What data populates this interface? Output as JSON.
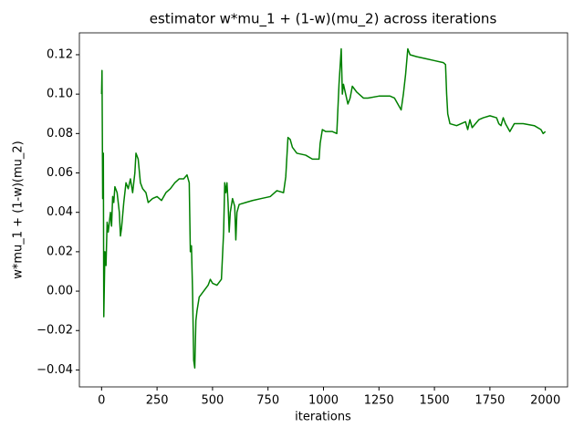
{
  "chart_data": {
    "type": "line",
    "title": "estimator w*mu_1 + (1-w)(mu_2) across iterations",
    "x_label": "iterations",
    "y_label": "w*mu_1 + (1-w)(mu_2)",
    "xlim": [
      -100,
      2100
    ],
    "ylim": [
      -0.0486,
      0.1311
    ],
    "xticks": [
      0,
      250,
      500,
      750,
      1000,
      1250,
      1500,
      1750,
      2000
    ],
    "yticks": [
      {
        "value": -0.04,
        "label": "−0.04"
      },
      {
        "value": -0.02,
        "label": "−0.02"
      },
      {
        "value": 0,
        "label": "0.00"
      },
      0.02,
      0.04,
      0.06,
      0.08,
      {
        "value": 0.1,
        "label": "0.10"
      },
      0.12
    ],
    "grid": false,
    "series": [
      {
        "color": "#008000",
        "x": [
          0,
          2,
          5,
          8,
          10,
          15,
          20,
          25,
          30,
          40,
          45,
          50,
          55,
          60,
          70,
          80,
          85,
          90,
          100,
          110,
          120,
          130,
          140,
          150,
          155,
          165,
          175,
          185,
          200,
          210,
          230,
          250,
          270,
          290,
          310,
          330,
          350,
          370,
          385,
          395,
          400,
          405,
          410,
          415,
          420,
          425,
          430,
          440,
          460,
          480,
          490,
          500,
          520,
          540,
          550,
          555,
          560,
          565,
          570,
          575,
          580,
          590,
          600,
          605,
          610,
          620,
          650,
          680,
          720,
          760,
          790,
          820,
          830,
          840,
          850,
          860,
          880,
          920,
          950,
          980,
          985,
          995,
          1010,
          1040,
          1060,
          1070,
          1080,
          1085,
          1090,
          1100,
          1110,
          1120,
          1130,
          1150,
          1180,
          1200,
          1250,
          1300,
          1320,
          1340,
          1350,
          1360,
          1370,
          1380,
          1390,
          1420,
          1460,
          1500,
          1540,
          1550,
          1555,
          1560,
          1570,
          1600,
          1640,
          1650,
          1660,
          1670,
          1700,
          1720,
          1750,
          1780,
          1790,
          1800,
          1810,
          1820,
          1840,
          1860,
          1900,
          1950,
          1980,
          1990,
          2000
        ],
        "values": [
          0.1,
          0.112,
          0.047,
          0.07,
          -0.013,
          0.02,
          0.013,
          0.035,
          0.03,
          0.04,
          0.033,
          0.048,
          0.045,
          0.053,
          0.05,
          0.04,
          0.028,
          0.032,
          0.045,
          0.055,
          0.052,
          0.057,
          0.05,
          0.06,
          0.07,
          0.067,
          0.055,
          0.052,
          0.05,
          0.045,
          0.047,
          0.048,
          0.046,
          0.05,
          0.052,
          0.055,
          0.057,
          0.057,
          0.059,
          0.055,
          0.02,
          0.023,
          0.0,
          -0.035,
          -0.039,
          -0.015,
          -0.01,
          -0.003,
          0.0,
          0.003,
          0.006,
          0.004,
          0.003,
          0.006,
          0.03,
          0.055,
          0.05,
          0.055,
          0.045,
          0.03,
          0.04,
          0.047,
          0.043,
          0.026,
          0.04,
          0.044,
          0.045,
          0.046,
          0.047,
          0.048,
          0.051,
          0.05,
          0.058,
          0.078,
          0.077,
          0.073,
          0.07,
          0.069,
          0.067,
          0.067,
          0.075,
          0.082,
          0.081,
          0.081,
          0.08,
          0.105,
          0.123,
          0.1,
          0.105,
          0.1,
          0.095,
          0.098,
          0.104,
          0.101,
          0.098,
          0.098,
          0.099,
          0.099,
          0.098,
          0.094,
          0.092,
          0.1,
          0.11,
          0.123,
          0.12,
          0.119,
          0.118,
          0.117,
          0.116,
          0.115,
          0.1,
          0.09,
          0.085,
          0.084,
          0.086,
          0.082,
          0.087,
          0.083,
          0.087,
          0.088,
          0.089,
          0.088,
          0.085,
          0.084,
          0.088,
          0.085,
          0.081,
          0.085,
          0.085,
          0.084,
          0.082,
          0.08,
          0.081
        ]
      }
    ]
  }
}
